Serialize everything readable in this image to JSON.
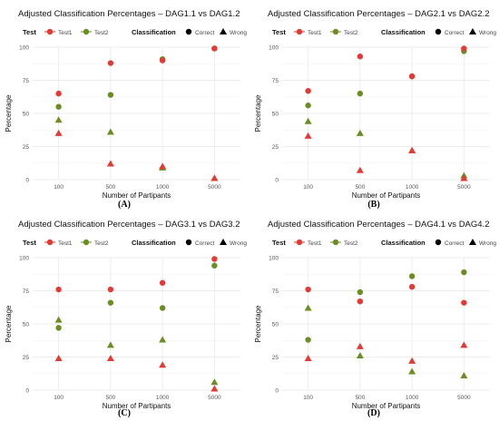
{
  "legend": {
    "test_title": "Test",
    "test_items": [
      {
        "label": "Test1",
        "color": "#e53935"
      },
      {
        "label": "Test2",
        "color": "#6b8e23"
      }
    ],
    "class_title": "Classification",
    "class_items": [
      {
        "label": "Correct",
        "shape": "circle"
      },
      {
        "label": "Wrong",
        "shape": "triangle"
      }
    ]
  },
  "chart_data": [
    {
      "type": "scatter",
      "title": "Adjusted Classification Percentages – DAG1.1 vs DAG1.2",
      "caption": "(A)",
      "xlabel": "Number of Partipants",
      "ylabel": "Percentage",
      "categories": [
        "100",
        "500",
        "1000",
        "5000"
      ],
      "yticks": [
        0,
        25,
        50,
        75,
        100
      ],
      "ylim": [
        0,
        100
      ],
      "grid": true,
      "series": [
        {
          "name": "Test1",
          "classification": "Correct",
          "values": [
            65,
            88,
            90,
            99
          ]
        },
        {
          "name": "Test1",
          "classification": "Wrong",
          "values": [
            35,
            12,
            10,
            1
          ]
        },
        {
          "name": "Test2",
          "classification": "Correct",
          "values": [
            55,
            64,
            91,
            99
          ]
        },
        {
          "name": "Test2",
          "classification": "Wrong",
          "values": [
            45,
            36,
            9,
            1
          ]
        }
      ]
    },
    {
      "type": "scatter",
      "title": "Adjusted Classification Percentages – DAG2.1 vs DAG2.2",
      "caption": "(B)",
      "xlabel": "Number of Partipants",
      "ylabel": "Percentage",
      "categories": [
        "100",
        "500",
        "1000",
        "5000"
      ],
      "yticks": [
        0,
        25,
        50,
        75,
        100
      ],
      "ylim": [
        0,
        100
      ],
      "grid": true,
      "series": [
        {
          "name": "Test1",
          "classification": "Correct",
          "values": [
            67,
            93,
            78,
            99
          ]
        },
        {
          "name": "Test1",
          "classification": "Wrong",
          "values": [
            33,
            7,
            22,
            1
          ]
        },
        {
          "name": "Test2",
          "classification": "Correct",
          "values": [
            56,
            65,
            78,
            97
          ]
        },
        {
          "name": "Test2",
          "classification": "Wrong",
          "values": [
            44,
            35,
            22,
            3
          ]
        }
      ]
    },
    {
      "type": "scatter",
      "title": "Adjusted Classification Percentages – DAG3.1 vs DAG3.2",
      "caption": "(C)",
      "xlabel": "Number of Partipants",
      "ylabel": "Percentage",
      "categories": [
        "100",
        "500",
        "1000",
        "5000"
      ],
      "yticks": [
        0,
        25,
        50,
        75,
        100
      ],
      "ylim": [
        0,
        100
      ],
      "grid": true,
      "series": [
        {
          "name": "Test1",
          "classification": "Correct",
          "values": [
            76,
            76,
            81,
            99
          ]
        },
        {
          "name": "Test1",
          "classification": "Wrong",
          "values": [
            24,
            24,
            19,
            1
          ]
        },
        {
          "name": "Test2",
          "classification": "Correct",
          "values": [
            47,
            66,
            62,
            94
          ]
        },
        {
          "name": "Test2",
          "classification": "Wrong",
          "values": [
            53,
            34,
            38,
            6
          ]
        }
      ]
    },
    {
      "type": "scatter",
      "title": "Adjusted Classification Percentages – DAG4.1 vs DAG4.2",
      "caption": "(D)",
      "xlabel": "Number of Partipants",
      "ylabel": "Percentage",
      "categories": [
        "100",
        "500",
        "1000",
        "5000"
      ],
      "yticks": [
        0,
        25,
        50,
        75,
        100
      ],
      "ylim": [
        0,
        100
      ],
      "grid": true,
      "series": [
        {
          "name": "Test1",
          "classification": "Correct",
          "values": [
            76,
            67,
            78,
            66
          ]
        },
        {
          "name": "Test1",
          "classification": "Wrong",
          "values": [
            24,
            33,
            22,
            34
          ]
        },
        {
          "name": "Test2",
          "classification": "Correct",
          "values": [
            38,
            74,
            86,
            89
          ]
        },
        {
          "name": "Test2",
          "classification": "Wrong",
          "values": [
            62,
            26,
            14,
            11
          ]
        }
      ]
    }
  ]
}
